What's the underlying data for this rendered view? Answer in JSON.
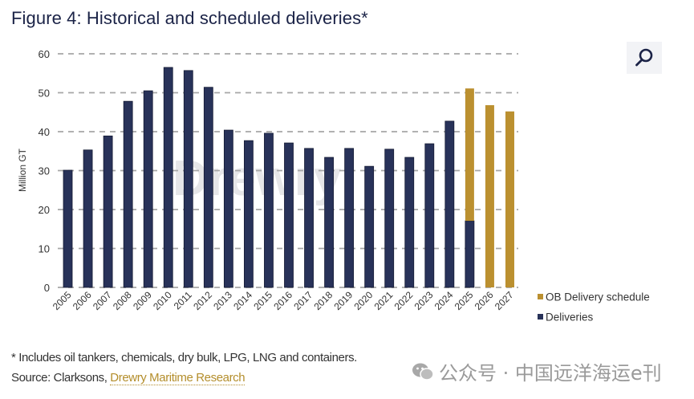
{
  "figure": {
    "title": "Figure 4: Historical and scheduled deliveries*",
    "footnote": "* Includes oil tankers, chemicals, dry bulk, LPG, LNG and containers.",
    "source_prefix": "Source: Clarksons, ",
    "source_link": "Drewry Maritime Research",
    "watermark_chart": "Drewry",
    "overlay_watermark": "公众号 · 中国远洋海运e刊",
    "zoom_icon": "search-icon"
  },
  "colors": {
    "deliveries": "#283259",
    "ob_schedule": "#bb9030",
    "grid": "#a6a6a6",
    "title": "#1b2347"
  },
  "chart_data": {
    "type": "bar",
    "stacked": true,
    "title": "Figure 4: Historical and scheduled deliveries*",
    "xlabel": "",
    "ylabel": "Million GT",
    "ylim": [
      0,
      60
    ],
    "yticks": [
      "0",
      "10",
      "20",
      "30",
      "40",
      "50",
      "60"
    ],
    "grid": true,
    "legend_position": "bottom-right",
    "categories": [
      "2005",
      "2006",
      "2007",
      "2008",
      "2009",
      "2010",
      "2011",
      "2012",
      "2013",
      "2014",
      "2015",
      "2016",
      "2017",
      "2018",
      "2019",
      "2020",
      "2021",
      "2022",
      "2023",
      "2024",
      "2025",
      "2026",
      "2027"
    ],
    "series": [
      {
        "name": "Deliveries",
        "values": [
          30.1,
          35.3,
          38.9,
          47.8,
          50.5,
          56.5,
          55.7,
          51.4,
          40.4,
          37.7,
          39.6,
          37.1,
          35.7,
          33.4,
          35.7,
          31.1,
          35.5,
          33.4,
          36.9,
          42.7,
          17.1,
          0,
          0
        ]
      },
      {
        "name": "OB Delivery schedule",
        "values": [
          0,
          0,
          0,
          0,
          0,
          0,
          0,
          0,
          0,
          0,
          0,
          0,
          0,
          0,
          0,
          0,
          0,
          0,
          0,
          0,
          34.0,
          46.8,
          45.2
        ]
      }
    ],
    "legend": [
      "OB Delivery schedule",
      "Deliveries"
    ]
  }
}
